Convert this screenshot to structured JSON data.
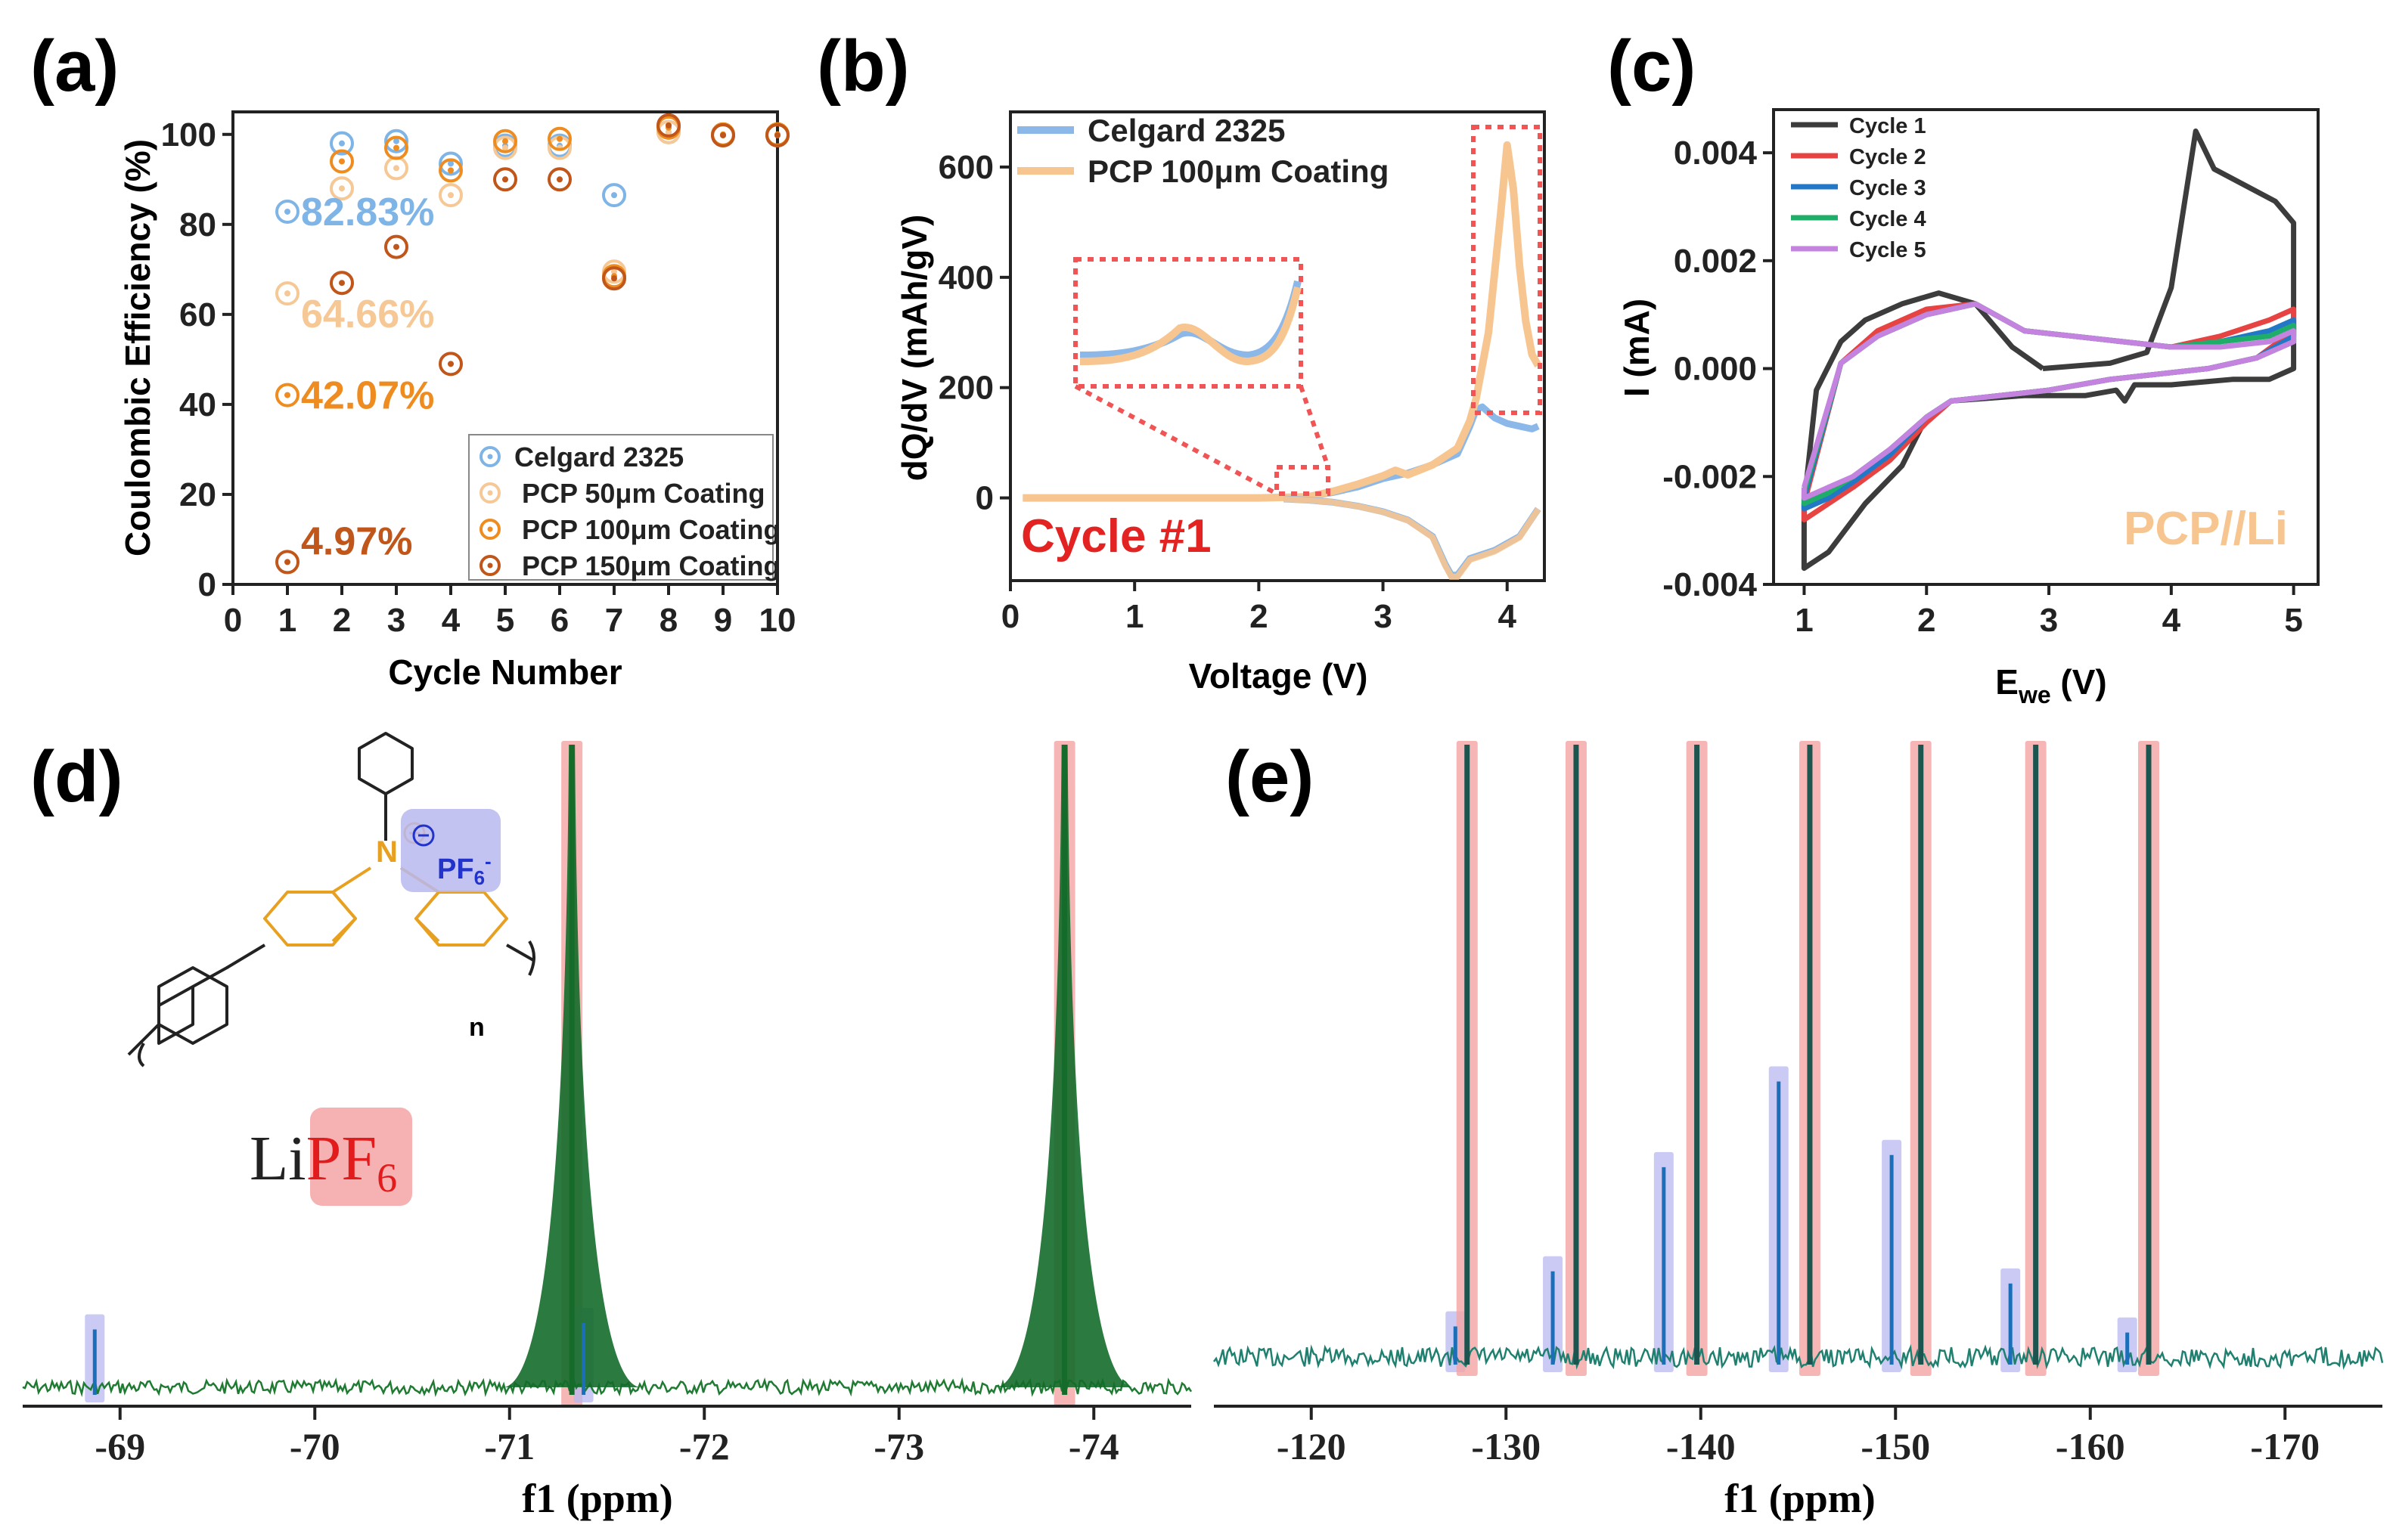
{
  "chart_data": [
    {
      "panel": "(a)",
      "type": "scatter",
      "xlabel": "Cycle Number",
      "ylabel": "Coulombic Efficiency (%)",
      "xlim": [
        0,
        10
      ],
      "ylim": [
        0,
        105
      ],
      "xticks": [
        "0",
        "1",
        "2",
        "3",
        "4",
        "5",
        "6",
        "7",
        "8",
        "9",
        "10"
      ],
      "yticks": [
        "0",
        "20",
        "40",
        "60",
        "80",
        "100"
      ],
      "legend_position": "bottom-right",
      "series": [
        {
          "name": "Celgard 2325",
          "color": "#7fb4e6",
          "x": [
            1,
            2,
            3,
            4,
            5,
            6,
            7,
            8,
            9,
            10
          ],
          "values": [
            82.83,
            98,
            98.5,
            93.5,
            97.5,
            97.5,
            86.5,
            100.5,
            99.8,
            99.8
          ]
        },
        {
          "name": "PCP 50μm Coating",
          "color": "#f5c896",
          "x": [
            1,
            2,
            3,
            4,
            5,
            6,
            7,
            8,
            9,
            10
          ],
          "values": [
            64.66,
            88,
            92.5,
            86.5,
            97,
            97,
            69.5,
            100.5,
            99.8,
            99.8
          ]
        },
        {
          "name": "PCP 100μm Coating",
          "color": "#ef8c1f",
          "x": [
            1,
            2,
            3,
            4,
            5,
            6,
            7,
            8,
            9,
            10
          ],
          "values": [
            42.07,
            94,
            97,
            92,
            98.5,
            99,
            68.5,
            101.5,
            100,
            100
          ]
        },
        {
          "name": "PCP 150μm Coating",
          "color": "#c0561a",
          "x": [
            1,
            2,
            3,
            4,
            5,
            6,
            7,
            8,
            9,
            10
          ],
          "values": [
            4.97,
            67,
            75,
            49,
            90,
            90,
            68,
            102,
            99.8,
            99.8
          ]
        }
      ],
      "annotations": [
        {
          "text": "82.83%",
          "color": "#7fb4e6"
        },
        {
          "text": "64.66%",
          "color": "#f5c896"
        },
        {
          "text": "42.07%",
          "color": "#ef8c1f"
        },
        {
          "text": "4.97%",
          "color": "#c0561a"
        }
      ]
    },
    {
      "panel": "(b)",
      "type": "line",
      "xlabel": "Voltage (V)",
      "ylabel": "dQ/dV (mAh/gV)",
      "xlim": [
        0,
        4.3
      ],
      "ylim": [
        -150,
        700
      ],
      "xticks": [
        "0",
        "1",
        "2",
        "3",
        "4"
      ],
      "yticks": [
        "0",
        "200",
        "400",
        "600"
      ],
      "annotation": "Cycle #1",
      "series": [
        {
          "name": "Celgard 2325",
          "color": "#8bb8e8",
          "x": [
            0.1,
            2.0,
            2.4,
            2.6,
            2.8,
            3.0,
            3.2,
            3.4,
            3.6,
            3.7,
            3.75,
            3.8,
            3.9,
            4.0,
            4.1,
            4.2,
            4.25
          ],
          "values": [
            0,
            0,
            2,
            10,
            20,
            35,
            45,
            60,
            80,
            130,
            160,
            165,
            145,
            135,
            130,
            125,
            130
          ]
        },
        {
          "name": "PCP 100μm Coating",
          "color": "#f7c590",
          "x": [
            0.1,
            2.0,
            2.4,
            2.6,
            2.8,
            3.0,
            3.1,
            3.2,
            3.4,
            3.6,
            3.7,
            3.75,
            3.85,
            3.95,
            4.0,
            4.05,
            4.1,
            4.15,
            4.2,
            4.25
          ],
          "values": [
            0,
            0,
            2,
            12,
            25,
            40,
            50,
            42,
            60,
            90,
            140,
            180,
            300,
            520,
            640,
            560,
            420,
            320,
            260,
            240
          ]
        }
      ],
      "cathodic_branch": {
        "x": [
          4.25,
          4.1,
          3.9,
          3.7,
          3.6,
          3.55,
          3.5,
          3.4,
          3.2,
          3.0,
          2.8,
          2.6,
          2.4,
          2.2
        ],
        "values": [
          -20,
          -70,
          -95,
          -110,
          -140,
          -140,
          -120,
          -70,
          -40,
          -25,
          -15,
          -8,
          -4,
          -2
        ]
      }
    },
    {
      "panel": "(c)",
      "type": "line",
      "xlabel": "E",
      "xlabel_sub": "we",
      "xlabel_unit": " (V)",
      "ylabel": "I (mA)",
      "xlim": [
        0.75,
        5.2
      ],
      "ylim": [
        -0.004,
        0.0048
      ],
      "xticks": [
        "1",
        "2",
        "3",
        "4",
        "5"
      ],
      "yticks": [
        "-0.004",
        "-0.002",
        "0.000",
        "0.002",
        "0.004"
      ],
      "annotation": "PCP//Li",
      "series": [
        {
          "name": "Cycle 1",
          "color": "#3c3c3c",
          "x": [
            2.95,
            3.5,
            3.8,
            4.0,
            4.2,
            4.35,
            4.6,
            4.85,
            5.0,
            5.0,
            4.8,
            4.5,
            4.0,
            3.7,
            3.62,
            3.55,
            3.3,
            2.8,
            2.2,
            2.0,
            1.8,
            1.5,
            1.2,
            1.0,
            1.0,
            1.1,
            1.3,
            1.5,
            1.8,
            2.1,
            2.4,
            2.7,
            2.95
          ],
          "values": [
            0.0,
            0.0001,
            0.0003,
            0.0015,
            0.0044,
            0.0037,
            0.0034,
            0.0031,
            0.0027,
            -0.0,
            -0.0002,
            -0.0002,
            -0.0003,
            -0.0003,
            -0.0006,
            -0.0004,
            -0.0005,
            -0.0005,
            -0.0006,
            -0.0009,
            -0.0018,
            -0.0025,
            -0.0034,
            -0.0037,
            -0.0025,
            -0.0004,
            0.0005,
            0.0009,
            0.0012,
            0.0014,
            0.0012,
            0.0004,
            0.0
          ]
        },
        {
          "name": "Cycle 2",
          "color": "#e84343",
          "x": [
            1.0,
            1.3,
            1.6,
            2.0,
            2.4,
            2.8,
            3.2,
            3.6,
            4.0,
            4.4,
            4.8,
            5.0,
            5.0,
            4.7,
            4.3,
            3.9,
            3.5,
            3.0,
            2.6,
            2.2,
            2.0,
            1.7,
            1.4,
            1.2,
            1.0,
            1.0
          ],
          "values": [
            -0.0025,
            0.0001,
            0.0007,
            0.0011,
            0.0012,
            0.0007,
            0.0006,
            0.0005,
            0.0004,
            0.0006,
            0.0009,
            0.0011,
            0.0007,
            0.0002,
            0.0,
            -0.0001,
            -0.0002,
            -0.0004,
            -0.0005,
            -0.0006,
            -0.001,
            -0.0017,
            -0.0022,
            -0.0025,
            -0.0028,
            -0.0025
          ]
        },
        {
          "name": "Cycle 3",
          "color": "#2278c7",
          "x": [
            1.0,
            1.3,
            1.6,
            2.0,
            2.4,
            2.8,
            3.2,
            3.6,
            4.0,
            4.4,
            4.8,
            5.0,
            5.0,
            4.7,
            4.3,
            3.9,
            3.5,
            3.0,
            2.6,
            2.2,
            2.0,
            1.7,
            1.4,
            1.2,
            1.0,
            1.0
          ],
          "values": [
            -0.0024,
            0.0001,
            0.0006,
            0.001,
            0.0012,
            0.0007,
            0.0006,
            0.0005,
            0.0004,
            0.0005,
            0.0007,
            0.0009,
            0.0006,
            0.0002,
            0.0,
            -0.0001,
            -0.0002,
            -0.0004,
            -0.0005,
            -0.0006,
            -0.0009,
            -0.0016,
            -0.0021,
            -0.0024,
            -0.0026,
            -0.0024
          ]
        },
        {
          "name": "Cycle 4",
          "color": "#1fae6a",
          "x": [
            1.0,
            1.3,
            1.6,
            2.0,
            2.4,
            2.8,
            3.2,
            3.6,
            4.0,
            4.4,
            4.8,
            5.0,
            5.0,
            4.7,
            4.3,
            3.9,
            3.5,
            3.0,
            2.6,
            2.2,
            2.0,
            1.7,
            1.4,
            1.2,
            1.0,
            1.0
          ],
          "values": [
            -0.0023,
            0.0001,
            0.0006,
            0.001,
            0.0012,
            0.0007,
            0.0006,
            0.0005,
            0.0004,
            0.0005,
            0.0006,
            0.0008,
            0.0005,
            0.0002,
            0.0,
            -0.0001,
            -0.0002,
            -0.0004,
            -0.0005,
            -0.0006,
            -0.0009,
            -0.0015,
            -0.002,
            -0.0023,
            -0.0025,
            -0.0023
          ]
        },
        {
          "name": "Cycle 5",
          "color": "#c583e0",
          "x": [
            1.0,
            1.3,
            1.6,
            2.0,
            2.4,
            2.8,
            3.2,
            3.6,
            4.0,
            4.4,
            4.8,
            5.0,
            5.0,
            4.7,
            4.3,
            3.9,
            3.5,
            3.0,
            2.6,
            2.2,
            2.0,
            1.7,
            1.4,
            1.2,
            1.0,
            1.0
          ],
          "values": [
            -0.0022,
            0.0001,
            0.0006,
            0.001,
            0.0012,
            0.0007,
            0.0006,
            0.0005,
            0.0004,
            0.0004,
            0.0005,
            0.0007,
            0.0005,
            0.0002,
            0.0,
            -0.0001,
            -0.0002,
            -0.0004,
            -0.0005,
            -0.0006,
            -0.0009,
            -0.0015,
            -0.002,
            -0.0022,
            -0.0024,
            -0.0022
          ]
        }
      ]
    },
    {
      "panel": "(d)",
      "type": "line",
      "xlabel": "f1 (ppm)",
      "xlim": [
        -68.5,
        -74.5
      ],
      "xticks": [
        "-69",
        "-70",
        "-71",
        "-72",
        "-73",
        "-74"
      ],
      "peaks": [
        {
          "ppm": -68.87,
          "height": 0.09,
          "color": "#1a6fb8",
          "highlight": "blue"
        },
        {
          "ppm": -71.32,
          "height": 1.0,
          "color": "#146b2a",
          "highlight": "red"
        },
        {
          "ppm": -71.38,
          "height": 0.1,
          "color": "#1a6fb8",
          "highlight": "blue"
        },
        {
          "ppm": -73.85,
          "height": 1.0,
          "color": "#146b2a",
          "highlight": "red"
        }
      ],
      "structure": {
        "counter_ion": "PF",
        "counter_ion_sub": "6",
        "counter_ion_sup": "-",
        "subscript_n": "n",
        "salt_prefix": "Li",
        "salt_highlight": "PF",
        "salt_sub": "6"
      }
    },
    {
      "panel": "(e)",
      "type": "line",
      "xlabel": "f1 (ppm)",
      "xlim": [
        -115,
        -175
      ],
      "xticks": [
        "-120",
        "-130",
        "-140",
        "-150",
        "-160",
        "-170"
      ],
      "peaks": [
        {
          "ppm": -127.4,
          "height": 0.05,
          "color": "#1a6fb8",
          "highlight": "blue"
        },
        {
          "ppm": -128.0,
          "height": 1.0,
          "color": "#1c5450",
          "highlight": "red"
        },
        {
          "ppm": -132.4,
          "height": 0.14,
          "color": "#1a6fb8",
          "highlight": "blue"
        },
        {
          "ppm": -133.6,
          "height": 1.0,
          "color": "#1c5450",
          "highlight": "red"
        },
        {
          "ppm": -138.1,
          "height": 0.31,
          "color": "#1a6fb8",
          "highlight": "blue"
        },
        {
          "ppm": -139.8,
          "height": 1.0,
          "color": "#1c5450",
          "highlight": "red"
        },
        {
          "ppm": -144.0,
          "height": 0.45,
          "color": "#1a6fb8",
          "highlight": "blue"
        },
        {
          "ppm": -145.6,
          "height": 1.0,
          "color": "#1c5450",
          "highlight": "red"
        },
        {
          "ppm": -149.8,
          "height": 0.33,
          "color": "#1a6fb8",
          "highlight": "blue"
        },
        {
          "ppm": -151.3,
          "height": 1.0,
          "color": "#1c5450",
          "highlight": "red"
        },
        {
          "ppm": -155.9,
          "height": 0.12,
          "color": "#1a6fb8",
          "highlight": "blue"
        },
        {
          "ppm": -157.2,
          "height": 1.0,
          "color": "#1c5450",
          "highlight": "red"
        },
        {
          "ppm": -161.9,
          "height": 0.04,
          "color": "#1a6fb8",
          "highlight": "blue"
        },
        {
          "ppm": -163.0,
          "height": 1.0,
          "color": "#1c5450",
          "highlight": "red"
        }
      ]
    }
  ],
  "panel_labels": {
    "a": "(a)",
    "b": "(b)",
    "c": "(c)",
    "d": "(d)",
    "e": "(e)"
  }
}
